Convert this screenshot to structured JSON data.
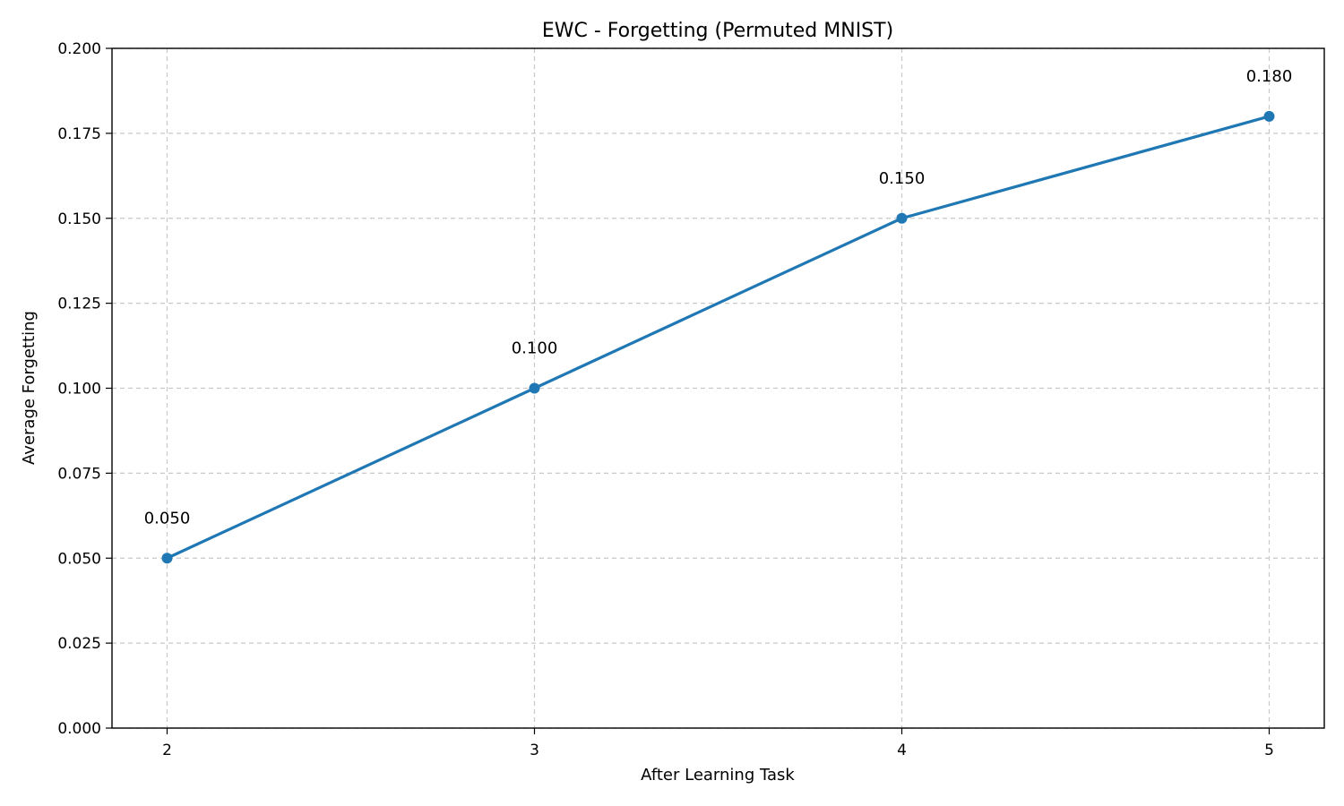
{
  "chart_data": {
    "type": "line",
    "title": "EWC - Forgetting (Permuted MNIST)",
    "xlabel": "After Learning Task",
    "ylabel": "Average Forgetting",
    "x": [
      2,
      3,
      4,
      5
    ],
    "series": [
      {
        "values": [
          0.05,
          0.1,
          0.15,
          0.18
        ],
        "data_labels": [
          "0.050",
          "0.100",
          "0.150",
          "0.180"
        ],
        "color": "#1f77b4",
        "marker": "circle"
      }
    ],
    "xlim": [
      1.85,
      5.15
    ],
    "ylim": [
      0,
      0.2
    ],
    "x_ticks": [
      2,
      3,
      4,
      5
    ],
    "x_tick_labels": [
      "2",
      "3",
      "4",
      "5"
    ],
    "y_ticks": [
      0,
      0.025,
      0.05,
      0.075,
      0.1,
      0.125,
      0.15,
      0.175,
      0.2
    ],
    "y_tick_labels": [
      "0.000",
      "0.025",
      "0.050",
      "0.075",
      "0.100",
      "0.125",
      "0.150",
      "0.175",
      "0.200"
    ],
    "grid": true,
    "grid_style": "dashed",
    "grid_color": "#c8c8c8",
    "legend": false
  }
}
